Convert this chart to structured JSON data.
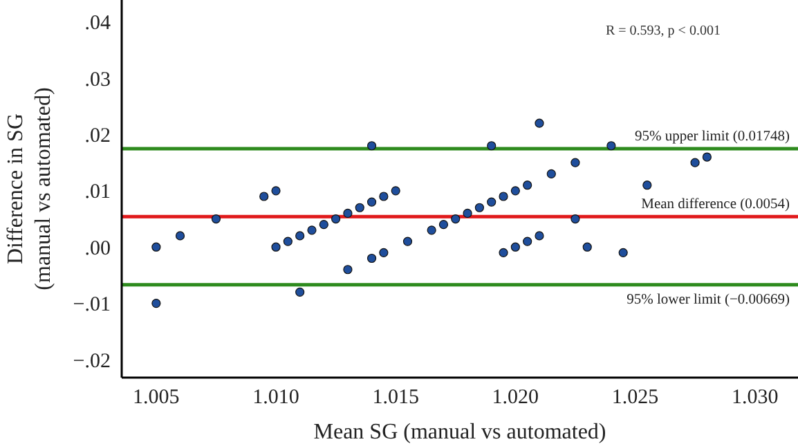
{
  "chart_data": {
    "type": "scatter",
    "xlabel": "Mean SG (manual vs automated)",
    "ylabel": "Difference in SG\n(manual vs automated)",
    "annotations": [
      "R = 0.593, p < 0.001"
    ],
    "x": [
      1.005,
      1.005,
      1.006,
      1.0075,
      1.0095,
      1.01,
      1.01,
      1.0105,
      1.011,
      1.011,
      1.0115,
      1.012,
      1.0125,
      1.013,
      1.013,
      1.0135,
      1.014,
      1.014,
      1.014,
      1.0145,
      1.0145,
      1.015,
      1.0155,
      1.0165,
      1.017,
      1.0175,
      1.018,
      1.0185,
      1.019,
      1.019,
      1.0195,
      1.0195,
      1.02,
      1.02,
      1.0205,
      1.0205,
      1.021,
      1.021,
      1.0215,
      1.0225,
      1.0225,
      1.023,
      1.024,
      1.0245,
      1.0255,
      1.0275,
      1.028
    ],
    "series": [
      {
        "color": "#1f4e9c",
        "values": [
          0.0,
          -0.01,
          0.002,
          0.005,
          0.009,
          0.01,
          0.0,
          0.001,
          0.002,
          -0.008,
          0.003,
          0.004,
          0.005,
          0.006,
          -0.004,
          0.007,
          0.008,
          0.018,
          -0.002,
          0.009,
          -0.001,
          0.01,
          0.001,
          0.003,
          0.004,
          0.005,
          0.006,
          0.007,
          0.018,
          0.008,
          0.009,
          -0.001,
          0.01,
          0.0,
          0.011,
          0.001,
          0.022,
          0.002,
          0.013,
          0.015,
          0.005,
          0.0,
          0.018,
          -0.001,
          0.011,
          0.015,
          0.016
        ]
      }
    ],
    "marker": "circle",
    "xlim": [
      1.00356,
      1.0318
    ],
    "ylim": [
      -0.0232,
      0.0439
    ],
    "xticks": [
      1.005,
      {
        "value": 1.01,
        "label": "1.010"
      },
      1.015,
      {
        "value": 1.02,
        "label": "1.020"
      },
      1.025,
      {
        "value": 1.03,
        "label": "1.030"
      }
    ],
    "yticks": [
      {
        "value": -0.02,
        "label": "−.02"
      },
      {
        "value": -0.01,
        "label": "−.01"
      },
      {
        "value": 0,
        "label": ".00"
      },
      {
        "value": 0.01,
        "label": ".01"
      },
      {
        "value": 0.02,
        "label": ".02"
      },
      {
        "value": 0.03,
        "label": ".03"
      },
      {
        "value": 0.04,
        "label": ".04"
      }
    ],
    "ref_lines": [
      {
        "axis": "y",
        "value": 0.01748,
        "label": "95% upper limit (0.01748)",
        "color": "#2e8b1e"
      },
      {
        "axis": "y",
        "value": 0.0054,
        "label": "Mean difference (0.0054)",
        "color": "#e0191b"
      },
      {
        "axis": "y",
        "value": -0.00669,
        "label": "95% lower limit (−0.00669)",
        "color": "#2e8b1e"
      }
    ],
    "grid": false,
    "legend": false
  }
}
